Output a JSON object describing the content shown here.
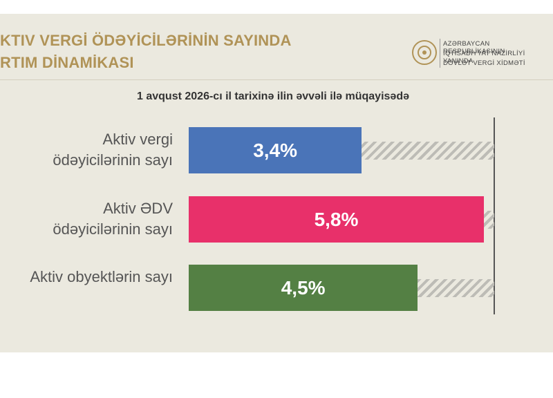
{
  "header": {
    "title_lines": [
      "KTIV VERGİ ÖDƏYİCİLƏRİNİN SAYINDA",
      "RTIM DİNAMİKASI"
    ],
    "logo_lines": [
      "AZƏRBAYCAN RESPUBLİKASININ",
      "İQTİSADİYYAT NAZİRLİYİ YANINDA",
      "DÖVLƏT VERGİ XİDMƏTİ"
    ]
  },
  "chart_data": {
    "type": "bar",
    "orientation": "horizontal",
    "subtitle": "1 avqust 2026-cı il tarixinə ilin əvvəli ilə müqayisədə",
    "categories": [
      "Aktiv vergi ödəyicilərinin sayı",
      "Aktiv ƏDV ödəyicilərinin sayı",
      "Aktiv obyektlərin sayı"
    ],
    "values": [
      3.4,
      5.8,
      4.5
    ],
    "value_labels": [
      "3,4%",
      "5,8%",
      "4,5%"
    ],
    "colors": [
      "#4a74b8",
      "#e8306a",
      "#548044"
    ]
  }
}
